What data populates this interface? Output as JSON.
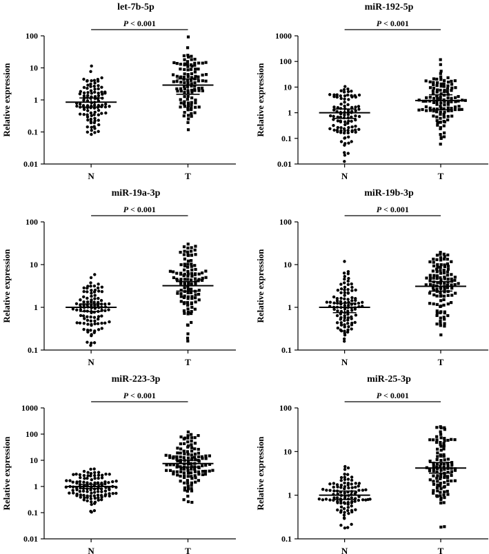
{
  "chart_data": [
    {
      "type": "scatter",
      "title": "let-7b-5p",
      "ylabel": "Relative expression",
      "yscale": "log",
      "ylim": [
        0.01,
        100
      ],
      "yticks": [
        "0.01",
        "0.1",
        "1",
        "10",
        "100"
      ],
      "categories": [
        "N",
        "T"
      ],
      "annotation": {
        "symbol": "P",
        "text": " < 0.001"
      },
      "series": [
        {
          "name": "N",
          "marker": "circle",
          "median": 0.85,
          "ci": [
            0.6,
            1.15
          ],
          "min": 0.085,
          "max": 11,
          "count": 100
        },
        {
          "name": "T",
          "marker": "square",
          "median": 2.9,
          "ci": [
            1.5,
            4.5
          ],
          "min": 0.12,
          "max": 90,
          "count": 110
        }
      ]
    },
    {
      "type": "scatter",
      "title": "miR-192-5p",
      "ylabel": "Relative expression",
      "yscale": "log",
      "ylim": [
        0.01,
        1000
      ],
      "yticks": [
        "0.01",
        "0.1",
        "1",
        "10",
        "100",
        "1000"
      ],
      "categories": [
        "N",
        "T"
      ],
      "annotation": {
        "symbol": "P",
        "text": " < 0.001"
      },
      "series": [
        {
          "name": "N",
          "marker": "circle",
          "median": 1.0,
          "ci": [
            0.6,
            1.4
          ],
          "min": 0.013,
          "max": 11,
          "count": 100
        },
        {
          "name": "T",
          "marker": "square",
          "median": 3.0,
          "ci": [
            1.3,
            5.0
          ],
          "min": 0.06,
          "max": 120,
          "count": 120
        }
      ]
    },
    {
      "type": "scatter",
      "title": "miR-19a-3p",
      "ylabel": "Relative expression",
      "yscale": "log",
      "ylim": [
        0.1,
        100
      ],
      "yticks": [
        "0.1",
        "1",
        "10",
        "100"
      ],
      "categories": [
        "N",
        "T"
      ],
      "annotation": {
        "symbol": "P",
        "text": " < 0.001"
      },
      "series": [
        {
          "name": "N",
          "marker": "circle",
          "median": 1.0,
          "ci": [
            0.8,
            1.2
          ],
          "min": 0.13,
          "max": 5.8,
          "count": 100
        },
        {
          "name": "T",
          "marker": "square",
          "median": 3.2,
          "ci": [
            2.4,
            4.0
          ],
          "min": 0.16,
          "max": 30,
          "count": 115
        }
      ]
    },
    {
      "type": "scatter",
      "title": "miR-19b-3p",
      "ylabel": "Relative expression",
      "yscale": "log",
      "ylim": [
        0.1,
        100
      ],
      "yticks": [
        "0.1",
        "1",
        "10",
        "100"
      ],
      "categories": [
        "N",
        "T"
      ],
      "annotation": {
        "symbol": "P",
        "text": " < 0.001"
      },
      "series": [
        {
          "name": "N",
          "marker": "circle",
          "median": 1.0,
          "ci": [
            0.75,
            1.25
          ],
          "min": 0.16,
          "max": 12,
          "count": 100
        },
        {
          "name": "T",
          "marker": "square",
          "median": 3.1,
          "ci": [
            2.4,
            4.0
          ],
          "min": 0.22,
          "max": 20,
          "count": 115
        }
      ]
    },
    {
      "type": "scatter",
      "title": "miR-223-3p",
      "ylabel": "Relative expression",
      "yscale": "log",
      "ylim": [
        0.01,
        1000
      ],
      "yticks": [
        "0.01",
        "0.1",
        "1",
        "10",
        "100",
        "1000"
      ],
      "categories": [
        "N",
        "T"
      ],
      "annotation": {
        "symbol": "P",
        "text": " < 0.001"
      },
      "series": [
        {
          "name": "N",
          "marker": "circle",
          "median": 1.0,
          "ci": [
            0.85,
            1.2
          ],
          "min": 0.1,
          "max": 4.5,
          "count": 110
        },
        {
          "name": "T",
          "marker": "square",
          "median": 7.5,
          "ci": [
            5.5,
            10
          ],
          "min": 0.25,
          "max": 120,
          "count": 130
        }
      ]
    },
    {
      "type": "scatter",
      "title": "miR-25-3p",
      "ylabel": "Relative expression",
      "yscale": "log",
      "ylim": [
        0.1,
        100
      ],
      "yticks": [
        "0.1",
        "1",
        "10",
        "100"
      ],
      "categories": [
        "N",
        "T"
      ],
      "annotation": {
        "symbol": "P",
        "text": " < 0.001"
      },
      "series": [
        {
          "name": "N",
          "marker": "circle",
          "median": 1.0,
          "ci": [
            0.8,
            1.25
          ],
          "min": 0.18,
          "max": 4.5,
          "count": 100
        },
        {
          "name": "T",
          "marker": "square",
          "median": 4.2,
          "ci": [
            3.2,
            5.6
          ],
          "min": 0.19,
          "max": 38,
          "count": 110
        }
      ]
    }
  ],
  "colors": {
    "ink": "#000000",
    "background": "#ffffff"
  }
}
